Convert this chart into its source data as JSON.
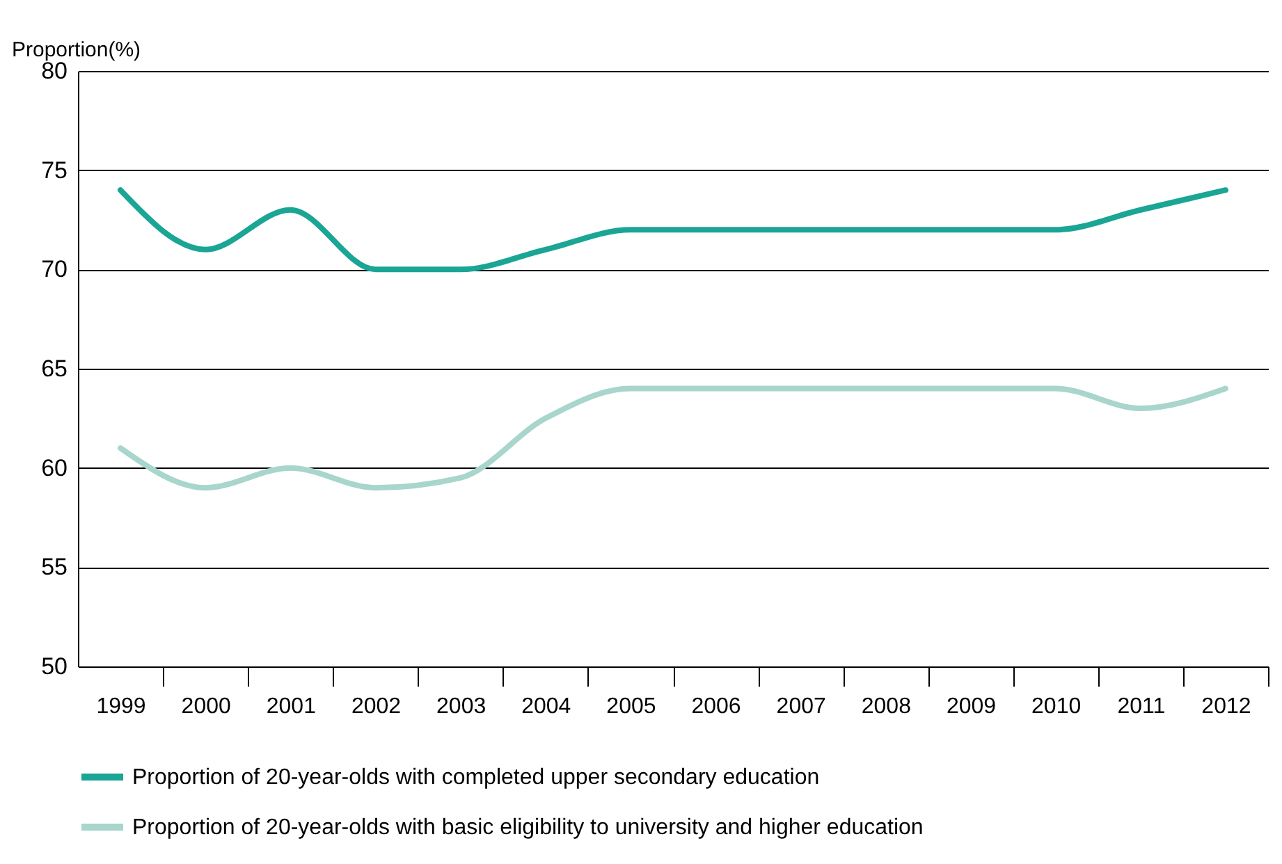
{
  "chart_data": {
    "type": "line",
    "ylabel": "Proportion(%)",
    "categories": [
      "1999",
      "2000",
      "2001",
      "2002",
      "2003",
      "2004",
      "2005",
      "2006",
      "2007",
      "2008",
      "2009",
      "2010",
      "2011",
      "2012"
    ],
    "series": [
      {
        "name": "Proportion of 20-year-olds with completed upper secondary education",
        "color": "#1aa595",
        "values": [
          74,
          71,
          73,
          70,
          70,
          71,
          72,
          72,
          72,
          72,
          72,
          72,
          73,
          74
        ]
      },
      {
        "name": "Proportion of 20-year-olds with basic eligibility to university and higher education",
        "color": "#a8d5cc",
        "values": [
          61,
          59,
          60,
          59,
          59.5,
          62.5,
          64,
          64,
          64,
          64,
          64,
          64,
          63,
          64
        ]
      }
    ],
    "ylim": [
      50,
      80
    ],
    "yticks": [
      50,
      55,
      60,
      65,
      70,
      75,
      80
    ],
    "grid": "y",
    "legend": "bottom",
    "marker": "none",
    "line_style": "solid"
  }
}
